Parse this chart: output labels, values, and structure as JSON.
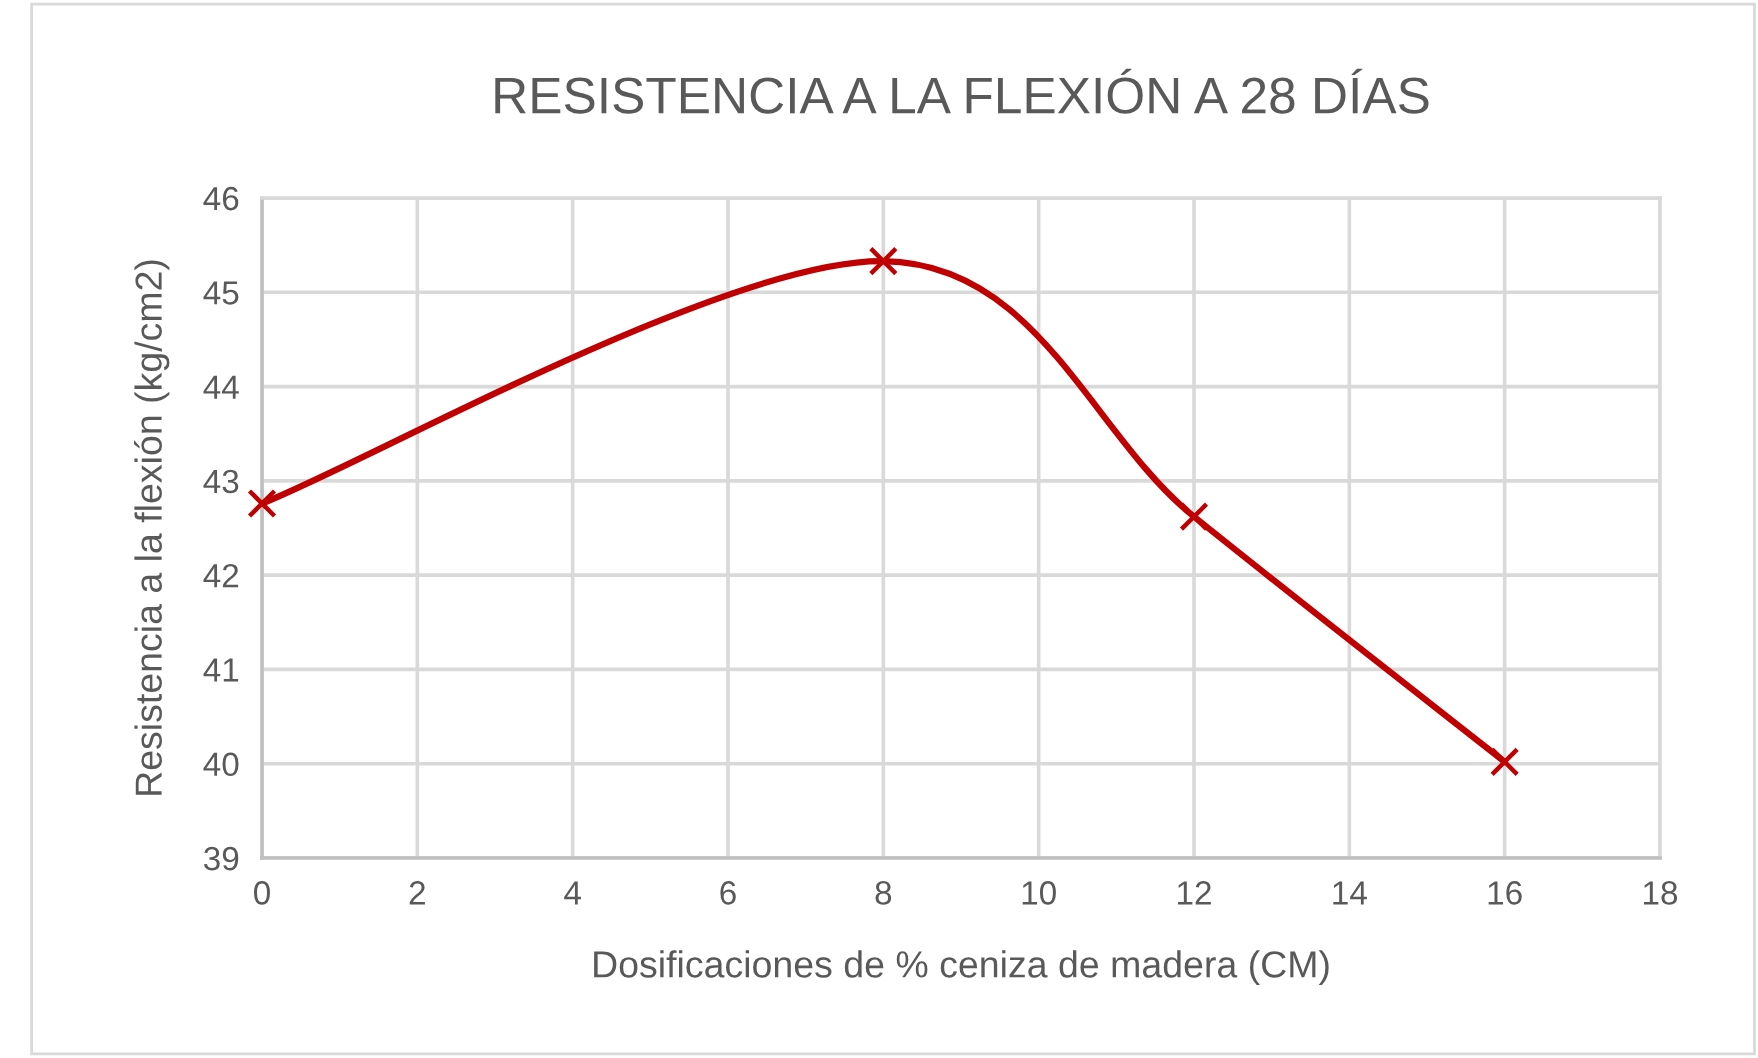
{
  "chart_data": {
    "type": "line",
    "title": "RESISTENCIA A LA FLEXIÓN A 28 DÍAS",
    "xlabel": "Dosificaciones de % ceniza de madera (CM)",
    "ylabel": "Resistencia a la flexión (kg/cm2)",
    "x": [
      0,
      8,
      12,
      16
    ],
    "series": [
      {
        "color": "#c00000",
        "values": [
          42.76,
          45.33,
          42.62,
          40.02
        ]
      }
    ],
    "xlim": [
      0,
      18
    ],
    "xticks": [
      0,
      2,
      4,
      6,
      8,
      10,
      12,
      14,
      16,
      18
    ],
    "ylim": [
      39,
      46
    ],
    "yticks": [
      39,
      40,
      41,
      42,
      43,
      44,
      45,
      46
    ],
    "grid": true,
    "marker": "cross",
    "line_style": "solid"
  }
}
